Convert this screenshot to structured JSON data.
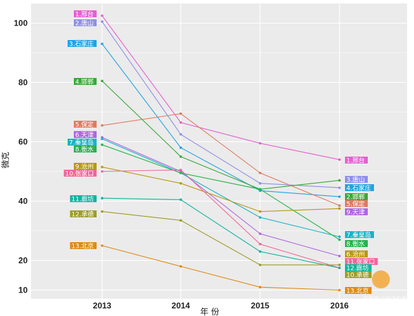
{
  "chart_data": {
    "type": "line",
    "x": [
      "2013",
      "2014",
      "2015",
      "2016"
    ],
    "xlabel": "年 份",
    "ylabel": "微克",
    "ylim": [
      7,
      108
    ],
    "yticks": [
      10,
      20,
      40,
      60,
      80,
      100
    ],
    "grid": true,
    "legend": "direct-labels",
    "background": "#ebebeb",
    "series": [
      {
        "name": "1.邢台",
        "color": "#e75fd0",
        "values": [
          102.5,
          66.5,
          59.5,
          54.0
        ],
        "labels": [
          "1.邢台",
          "1.邢台"
        ]
      },
      {
        "name": "2.唐山",
        "color": "#8f8fe8",
        "values": [
          100.5,
          62.5,
          46.0,
          44.5
        ],
        "labels": [
          "2.唐山",
          "3.唐山"
        ]
      },
      {
        "name": "3.石家庄",
        "color": "#22a3e0",
        "values": [
          93.0,
          58.0,
          43.5,
          41.5
        ],
        "labels": [
          "3.石家庄",
          "4.石家庄"
        ]
      },
      {
        "name": "4.邯郸",
        "color": "#3aa83a",
        "values": [
          80.5,
          55.0,
          44.0,
          47.0
        ],
        "labels": [
          "4.邯郸",
          "2.邯郸"
        ]
      },
      {
        "name": "5.保定",
        "color": "#e07a62",
        "values": [
          65.5,
          69.5,
          49.5,
          38.5
        ],
        "labels": [
          "5.保定",
          "5.保定"
        ]
      },
      {
        "name": "6.天津",
        "color": "#b066e0",
        "values": [
          61.5,
          50.0,
          29.0,
          21.5
        ],
        "labels": [
          "6.天津",
          "9.天津"
        ]
      },
      {
        "name": "7.秦皇岛",
        "color": "#18b4c6",
        "values": [
          61.0,
          49.5,
          34.5,
          28.0
        ],
        "labels": [
          "7.秦皇岛",
          "7.秦皇岛"
        ]
      },
      {
        "name": "8.衡水",
        "color": "#28b34b",
        "values": [
          59.0,
          49.5,
          44.0,
          27.0
        ],
        "labels": [
          "8.衡水",
          "8.衡水"
        ]
      },
      {
        "name": "9.沧州",
        "color": "#b89a12",
        "values": [
          51.5,
          46.0,
          36.5,
          37.5
        ],
        "labels": [
          "9.沧州",
          "6.沧州"
        ]
      },
      {
        "name": "10.张家口",
        "color": "#f1669a",
        "values": [
          50.0,
          50.5,
          25.5,
          17.5
        ],
        "labels": [
          "10.张家口",
          "11.张家口"
        ]
      },
      {
        "name": "11.廊坊",
        "color": "#10b5a0",
        "values": [
          41.0,
          40.5,
          23.0,
          17.5
        ],
        "labels": [
          "11.廊坊",
          "12.廊坊"
        ]
      },
      {
        "name": "12.承德",
        "color": "#9c9c2a",
        "values": [
          36.5,
          33.5,
          18.5,
          18.5
        ],
        "labels": [
          "12.承德",
          "10.承德"
        ]
      },
      {
        "name": "13.北京",
        "color": "#e08a12",
        "values": [
          25.0,
          18.0,
          11.0,
          10.0
        ],
        "labels": [
          "13.北京",
          "13.北京"
        ]
      }
    ]
  },
  "watermark": "中国产业经济信息网"
}
